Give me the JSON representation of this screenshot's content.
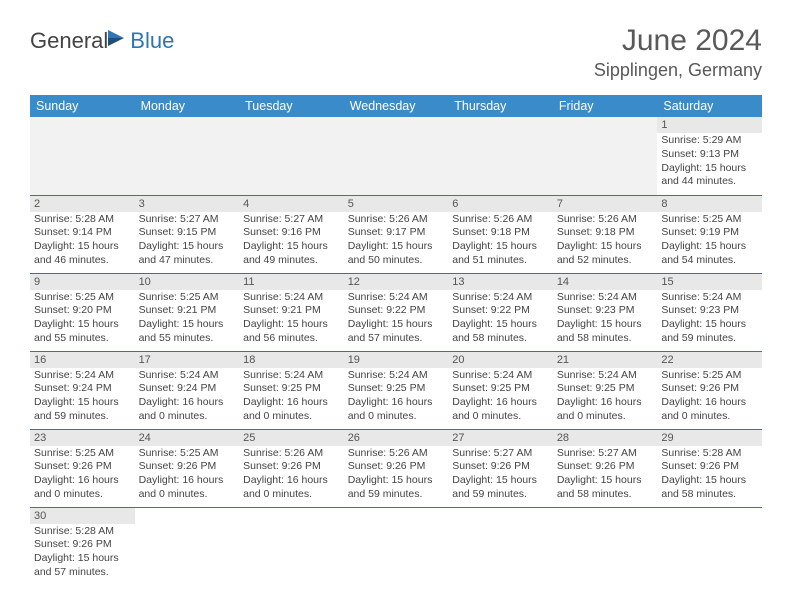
{
  "brand": {
    "general": "General",
    "blue": "Blue"
  },
  "title": "June 2024",
  "location": "Sipplingen, Germany",
  "colors": {
    "header_bg": "#3a8bc9",
    "header_text": "#ffffff",
    "daynum_bg": "#e8e8e8",
    "cell_border": "#2e75b6",
    "empty_bg": "#f2f2f2",
    "body_text": "#444444",
    "title_text": "#595959"
  },
  "daysOfWeek": [
    "Sunday",
    "Monday",
    "Tuesday",
    "Wednesday",
    "Thursday",
    "Friday",
    "Saturday"
  ],
  "weeks": [
    [
      null,
      null,
      null,
      null,
      null,
      null,
      {
        "n": "1",
        "sr": "5:29 AM",
        "ss": "9:13 PM",
        "dl": "15 hours and 44 minutes."
      }
    ],
    [
      {
        "n": "2",
        "sr": "5:28 AM",
        "ss": "9:14 PM",
        "dl": "15 hours and 46 minutes."
      },
      {
        "n": "3",
        "sr": "5:27 AM",
        "ss": "9:15 PM",
        "dl": "15 hours and 47 minutes."
      },
      {
        "n": "4",
        "sr": "5:27 AM",
        "ss": "9:16 PM",
        "dl": "15 hours and 49 minutes."
      },
      {
        "n": "5",
        "sr": "5:26 AM",
        "ss": "9:17 PM",
        "dl": "15 hours and 50 minutes."
      },
      {
        "n": "6",
        "sr": "5:26 AM",
        "ss": "9:18 PM",
        "dl": "15 hours and 51 minutes."
      },
      {
        "n": "7",
        "sr": "5:26 AM",
        "ss": "9:18 PM",
        "dl": "15 hours and 52 minutes."
      },
      {
        "n": "8",
        "sr": "5:25 AM",
        "ss": "9:19 PM",
        "dl": "15 hours and 54 minutes."
      }
    ],
    [
      {
        "n": "9",
        "sr": "5:25 AM",
        "ss": "9:20 PM",
        "dl": "15 hours and 55 minutes."
      },
      {
        "n": "10",
        "sr": "5:25 AM",
        "ss": "9:21 PM",
        "dl": "15 hours and 55 minutes."
      },
      {
        "n": "11",
        "sr": "5:24 AM",
        "ss": "9:21 PM",
        "dl": "15 hours and 56 minutes."
      },
      {
        "n": "12",
        "sr": "5:24 AM",
        "ss": "9:22 PM",
        "dl": "15 hours and 57 minutes."
      },
      {
        "n": "13",
        "sr": "5:24 AM",
        "ss": "9:22 PM",
        "dl": "15 hours and 58 minutes."
      },
      {
        "n": "14",
        "sr": "5:24 AM",
        "ss": "9:23 PM",
        "dl": "15 hours and 58 minutes."
      },
      {
        "n": "15",
        "sr": "5:24 AM",
        "ss": "9:23 PM",
        "dl": "15 hours and 59 minutes."
      }
    ],
    [
      {
        "n": "16",
        "sr": "5:24 AM",
        "ss": "9:24 PM",
        "dl": "15 hours and 59 minutes."
      },
      {
        "n": "17",
        "sr": "5:24 AM",
        "ss": "9:24 PM",
        "dl": "16 hours and 0 minutes."
      },
      {
        "n": "18",
        "sr": "5:24 AM",
        "ss": "9:25 PM",
        "dl": "16 hours and 0 minutes."
      },
      {
        "n": "19",
        "sr": "5:24 AM",
        "ss": "9:25 PM",
        "dl": "16 hours and 0 minutes."
      },
      {
        "n": "20",
        "sr": "5:24 AM",
        "ss": "9:25 PM",
        "dl": "16 hours and 0 minutes."
      },
      {
        "n": "21",
        "sr": "5:24 AM",
        "ss": "9:25 PM",
        "dl": "16 hours and 0 minutes."
      },
      {
        "n": "22",
        "sr": "5:25 AM",
        "ss": "9:26 PM",
        "dl": "16 hours and 0 minutes."
      }
    ],
    [
      {
        "n": "23",
        "sr": "5:25 AM",
        "ss": "9:26 PM",
        "dl": "16 hours and 0 minutes."
      },
      {
        "n": "24",
        "sr": "5:25 AM",
        "ss": "9:26 PM",
        "dl": "16 hours and 0 minutes."
      },
      {
        "n": "25",
        "sr": "5:26 AM",
        "ss": "9:26 PM",
        "dl": "16 hours and 0 minutes."
      },
      {
        "n": "26",
        "sr": "5:26 AM",
        "ss": "9:26 PM",
        "dl": "15 hours and 59 minutes."
      },
      {
        "n": "27",
        "sr": "5:27 AM",
        "ss": "9:26 PM",
        "dl": "15 hours and 59 minutes."
      },
      {
        "n": "28",
        "sr": "5:27 AM",
        "ss": "9:26 PM",
        "dl": "15 hours and 58 minutes."
      },
      {
        "n": "29",
        "sr": "5:28 AM",
        "ss": "9:26 PM",
        "dl": "15 hours and 58 minutes."
      }
    ],
    [
      {
        "n": "30",
        "sr": "5:28 AM",
        "ss": "9:26 PM",
        "dl": "15 hours and 57 minutes."
      },
      null,
      null,
      null,
      null,
      null,
      null
    ]
  ],
  "labels": {
    "sunrise": "Sunrise: ",
    "sunset": "Sunset: ",
    "daylight": "Daylight: "
  }
}
